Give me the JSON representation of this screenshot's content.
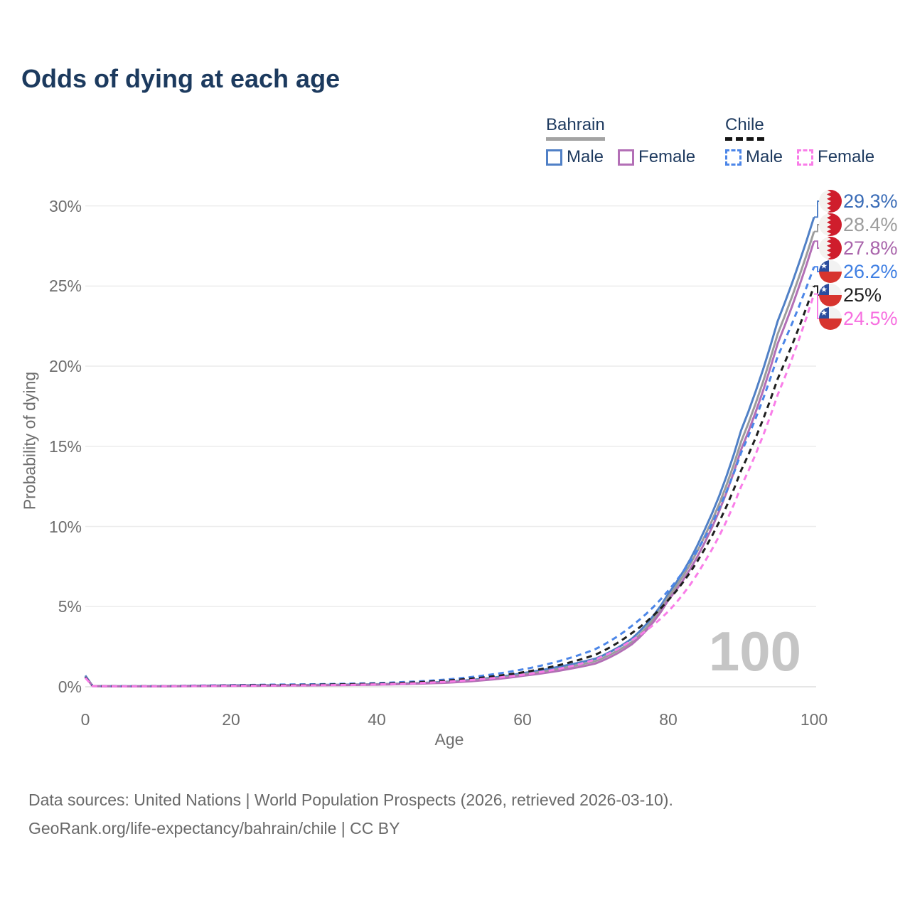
{
  "title": "Odds of dying at each age",
  "legend": {
    "bahrain": {
      "name": "Bahrain",
      "male": "Male",
      "female": "Female"
    },
    "chile": {
      "name": "Chile",
      "male": "Male",
      "female": "Female"
    }
  },
  "chart_data": {
    "type": "line",
    "title": "Odds of dying at each age",
    "xlabel": "Age",
    "ylabel": "Probability of dying",
    "xlim": [
      0,
      100
    ],
    "ylim": [
      0,
      30
    ],
    "x_ticks": [
      "0",
      "20",
      "40",
      "60",
      "80",
      "100"
    ],
    "x_tick_values": [
      0,
      20,
      40,
      60,
      80,
      100
    ],
    "y_ticks": [
      "0%",
      "5%",
      "10%",
      "15%",
      "20%",
      "25%",
      "30%"
    ],
    "y_tick_values": [
      0,
      5,
      10,
      15,
      20,
      25,
      30
    ],
    "grid": "horizontal-only",
    "legend_position": "top-right",
    "age_watermark": "100",
    "unit": "percent",
    "ages": [
      0,
      1,
      5,
      10,
      15,
      20,
      25,
      30,
      35,
      40,
      45,
      50,
      55,
      60,
      65,
      70,
      75,
      80,
      85,
      90,
      95,
      100
    ],
    "series": [
      {
        "name": "Bahrain Male",
        "country": "Bahrain",
        "sex": "Male",
        "flag": "bahrain",
        "style": "solid",
        "color": "#5080c6",
        "label_color": "#3a6cb7",
        "end_label": "29.3%",
        "end_value": 29.3,
        "values": [
          0.7,
          0.05,
          0.03,
          0.03,
          0.06,
          0.09,
          0.1,
          0.11,
          0.13,
          0.16,
          0.22,
          0.32,
          0.52,
          0.85,
          1.25,
          1.75,
          3.0,
          5.8,
          9.8,
          16.0,
          22.8,
          29.3
        ]
      },
      {
        "name": "Bahrain All",
        "country": "Bahrain",
        "sex": "All",
        "flag": "bahrain",
        "style": "solid",
        "color": "#9c9c9c",
        "label_color": "#9c9c9c",
        "end_label": "28.4%",
        "end_value": 28.4,
        "values": [
          0.66,
          0.045,
          0.027,
          0.027,
          0.05,
          0.07,
          0.085,
          0.1,
          0.12,
          0.15,
          0.2,
          0.29,
          0.47,
          0.77,
          1.12,
          1.6,
          2.8,
          5.6,
          9.4,
          15.3,
          22.0,
          28.4
        ]
      },
      {
        "name": "Bahrain Female",
        "country": "Bahrain",
        "sex": "Female",
        "flag": "bahrain",
        "style": "solid",
        "color": "#b36fb6",
        "label_color": "#a964ab",
        "end_label": "27.8%",
        "end_value": 27.8,
        "values": [
          0.62,
          0.04,
          0.024,
          0.024,
          0.04,
          0.05,
          0.065,
          0.08,
          0.1,
          0.13,
          0.18,
          0.26,
          0.42,
          0.68,
          1.0,
          1.45,
          2.65,
          5.4,
          9.0,
          14.8,
          21.4,
          27.8
        ]
      },
      {
        "name": "Chile Male",
        "country": "Chile",
        "sex": "Male",
        "flag": "chile",
        "style": "dashed",
        "color": "#4c86e8",
        "label_color": "#3f7fe3",
        "end_label": "26.2%",
        "end_value": 26.2,
        "values": [
          0.64,
          0.05,
          0.03,
          0.04,
          0.07,
          0.1,
          0.13,
          0.15,
          0.18,
          0.23,
          0.32,
          0.47,
          0.72,
          1.08,
          1.6,
          2.35,
          3.8,
          6.0,
          9.3,
          14.6,
          20.6,
          26.2
        ]
      },
      {
        "name": "Chile All",
        "country": "Chile",
        "sex": "All",
        "flag": "chile",
        "style": "dashed",
        "color": "#1f1f1f",
        "label_color": "#1f1f1f",
        "end_label": "25%",
        "end_value": 25.0,
        "values": [
          0.6,
          0.045,
          0.027,
          0.033,
          0.055,
          0.08,
          0.1,
          0.12,
          0.15,
          0.19,
          0.27,
          0.4,
          0.6,
          0.9,
          1.35,
          2.0,
          3.35,
          5.4,
          8.6,
          13.5,
          19.2,
          25.0
        ]
      },
      {
        "name": "Chile Female",
        "country": "Chile",
        "sex": "Female",
        "flag": "chile",
        "style": "dashed",
        "color": "#f97de8",
        "label_color": "#f76fe0",
        "end_label": "24.5%",
        "end_value": 24.5,
        "values": [
          0.56,
          0.04,
          0.024,
          0.027,
          0.045,
          0.06,
          0.075,
          0.09,
          0.11,
          0.15,
          0.21,
          0.33,
          0.5,
          0.75,
          1.12,
          1.7,
          2.9,
          4.7,
          7.8,
          12.5,
          18.2,
          24.5
        ]
      }
    ]
  },
  "colors": {
    "title": "#1c3a5e",
    "legend_text": "#1e3a5f",
    "axis_text": "#6e6e6e",
    "grid": "#ececec",
    "baseline": "#dedede",
    "watermark": "#c5c5c5",
    "bahrain_underline": "#a3a3a3",
    "chile_underline": "#151515",
    "bahrain_flag_red": "#cf1d2c",
    "chile_flag_blue": "#2b4d9e",
    "chile_flag_red": "#d7342e"
  },
  "footer": {
    "line1": "Data sources: United Nations | World Population Prospects (2026, retrieved 2026-03-10).",
    "line2": "GeoRank.org/life-expectancy/bahrain/chile | CC BY"
  }
}
